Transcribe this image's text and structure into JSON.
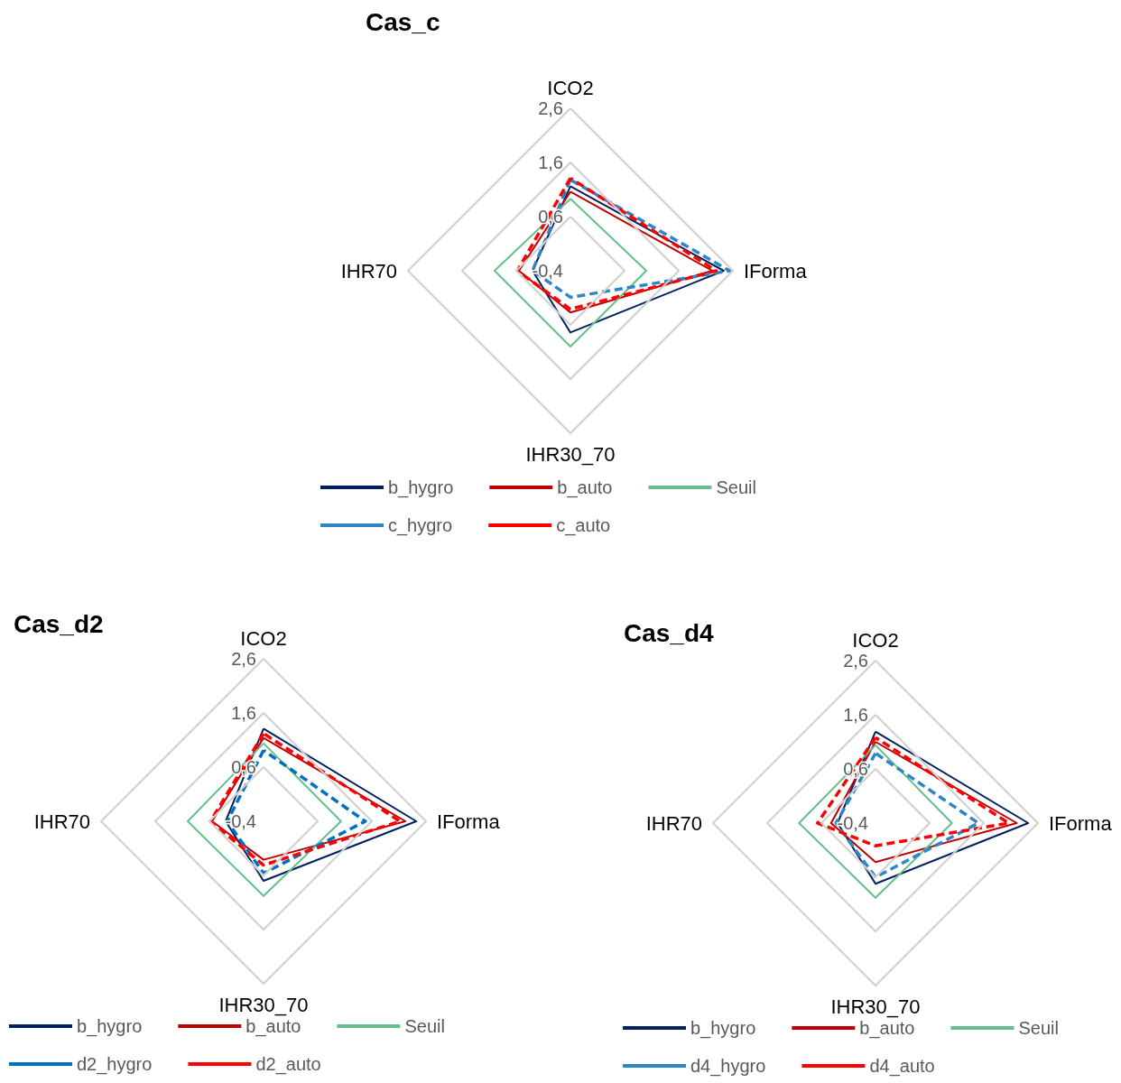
{
  "chart_data": [
    {
      "type": "radar",
      "title": "Cas_c",
      "categories": [
        "ICO2",
        "IForma",
        "IHR30_70",
        "IHR70"
      ],
      "ylim": [
        -0.4,
        2.6
      ],
      "yticks": [
        {
          "value": -0.4,
          "label": "-0,4"
        },
        {
          "value": 0.6,
          "label": "0,6"
        },
        {
          "value": 1.6,
          "label": "1,6"
        },
        {
          "value": 2.6,
          "label": "2,6"
        }
      ],
      "grid": true,
      "legend": "bottom",
      "marker": "none",
      "series": [
        {
          "name": "b_hygro",
          "color": "#002060",
          "line_style": "solid",
          "values": [
            1.16,
            2.43,
            0.74,
            0.3
          ]
        },
        {
          "name": "b_auto",
          "color": "#c00000",
          "line_style": "solid",
          "values": [
            1.06,
            2.22,
            0.37,
            0.55
          ]
        },
        {
          "name": "Seuil",
          "color": "#63c08a",
          "line_style": "solid",
          "values": [
            0.93,
            1,
            1,
            1
          ]
        },
        {
          "name": "c_hygro",
          "color": "#2e86c8",
          "line_style": "dashed",
          "values": [
            1.28,
            2.54,
            0.09,
            0.3
          ]
        },
        {
          "name": "c_auto",
          "color": "#ff0000",
          "line_style": "dashed",
          "values": [
            1.31,
            2.29,
            0.31,
            0.58
          ]
        }
      ]
    },
    {
      "type": "radar",
      "title": "Cas_d2",
      "categories": [
        "ICO2",
        "IForma",
        "IHR30_70",
        "IHR70"
      ],
      "ylim": [
        -0.4,
        2.6
      ],
      "yticks": [
        {
          "value": -0.4,
          "label": "-0,4"
        },
        {
          "value": 0.6,
          "label": "0,6"
        },
        {
          "value": 1.6,
          "label": "1,6"
        },
        {
          "value": 2.6,
          "label": "2,6"
        }
      ],
      "grid": true,
      "legend": "bottom",
      "marker": "none",
      "series": [
        {
          "name": "b_hygro",
          "color": "#002060",
          "line_style": "solid",
          "values": [
            1.31,
            2.42,
            0.7,
            0.3
          ]
        },
        {
          "name": "b_auto",
          "color": "#c00000",
          "line_style": "solid",
          "values": [
            1.14,
            2.22,
            0.31,
            0.55
          ]
        },
        {
          "name": "Seuil",
          "color": "#63c08a",
          "line_style": "solid",
          "values": [
            1.04,
            1.03,
            0.98,
            1
          ]
        },
        {
          "name": "d2_hygro",
          "color": "#0070c0",
          "line_style": "dashed",
          "values": [
            0.91,
            1.48,
            0.56,
            0.27
          ]
        },
        {
          "name": "d2_auto",
          "color": "#ff0000",
          "line_style": "dashed",
          "values": [
            1.22,
            2.12,
            0.41,
            0.58
          ]
        }
      ]
    },
    {
      "type": "radar",
      "title": "Cas_d4",
      "categories": [
        "ICO2",
        "IForma",
        "IHR30_70",
        "IHR70"
      ],
      "ylim": [
        -0.4,
        2.6
      ],
      "yticks": [
        {
          "value": -0.4,
          "label": "-0,4"
        },
        {
          "value": 0.6,
          "label": "0,6"
        },
        {
          "value": 1.6,
          "label": "1,6"
        },
        {
          "value": 2.6,
          "label": "2,6"
        }
      ],
      "grid": true,
      "legend": "bottom",
      "marker": "none",
      "series": [
        {
          "name": "b_hygro",
          "color": "#002060",
          "line_style": "solid",
          "values": [
            1.29,
            2.42,
            0.72,
            0.3
          ]
        },
        {
          "name": "b_auto",
          "color": "#c00000",
          "line_style": "solid",
          "values": [
            1.1,
            2.21,
            0.32,
            0.42
          ]
        },
        {
          "name": "Seuil",
          "color": "#63c08a",
          "line_style": "solid",
          "values": [
            1.04,
            1.01,
            0.98,
            1.01
          ]
        },
        {
          "name": "d4_hygro",
          "color": "#2e86c8",
          "line_style": "dashed",
          "values": [
            0.89,
            1.5,
            0.6,
            0.33
          ]
        },
        {
          "name": "d4_auto",
          "color": "#ff0000",
          "line_style": "dashed",
          "values": [
            1.18,
            2.06,
            0.02,
            0.67
          ]
        }
      ]
    }
  ]
}
